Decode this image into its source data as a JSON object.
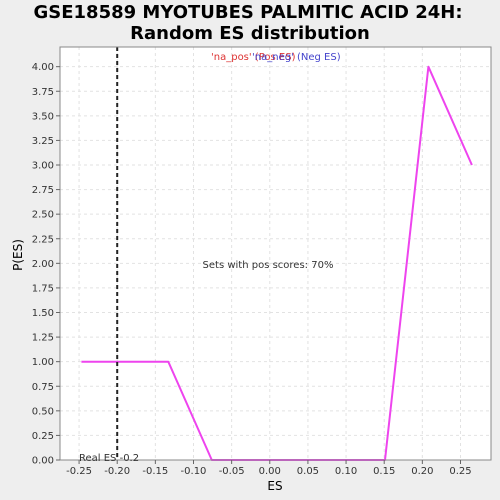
{
  "chart_data": {
    "type": "line",
    "title_line1": "GSE18589 MYOTUBES PALMITIC ACID 24H:",
    "title_line2": "Random ES distribution",
    "xlabel": "ES",
    "ylabel": "P(ES)",
    "xlim": [
      -0.275,
      0.29
    ],
    "ylim": [
      0,
      4.2
    ],
    "x_ticks": [
      -0.25,
      -0.2,
      -0.15,
      -0.1,
      -0.05,
      0.0,
      0.05,
      0.1,
      0.15,
      0.2,
      0.25
    ],
    "x_tick_labels": [
      "-0.25",
      "-0.20",
      "-0.15",
      "-0.10",
      "-0.05",
      "0.00",
      "0.05",
      "0.10",
      "0.15",
      "0.20",
      "0.25"
    ],
    "y_ticks": [
      0,
      0.25,
      0.5,
      0.75,
      1.0,
      1.25,
      1.5,
      1.75,
      2.0,
      2.25,
      2.5,
      2.75,
      3.0,
      3.25,
      3.5,
      3.75,
      4.0
    ],
    "y_tick_labels": [
      "0.00",
      "0.25",
      "0.50",
      "0.75",
      "1.00",
      "1.25",
      "1.50",
      "1.75",
      "2.00",
      "2.25",
      "2.50",
      "2.75",
      "3.00",
      "3.25",
      "3.50",
      "3.75",
      "4.00"
    ],
    "grid": true,
    "series": [
      {
        "color": "#ee44ee",
        "x": [
          -0.247,
          -0.19,
          -0.133,
          -0.076,
          -0.02,
          0.037,
          0.094,
          0.151,
          0.208,
          0.265
        ],
        "y": [
          1.0,
          1.0,
          1.0,
          0.0,
          0.0,
          0.0,
          0.0,
          0.0,
          4.0,
          3.0
        ]
      }
    ],
    "legend": [
      {
        "label": "'na_pos' (Pos ES)",
        "color": "#dd3333"
      },
      {
        "label": "'na_neg' (Neg ES)",
        "color": "#4444cc"
      }
    ],
    "legend_placement": "top-center",
    "real_es": -0.2,
    "real_es_label": "Real ES -0.2",
    "annotation": "Sets with pos scores: 70%"
  }
}
